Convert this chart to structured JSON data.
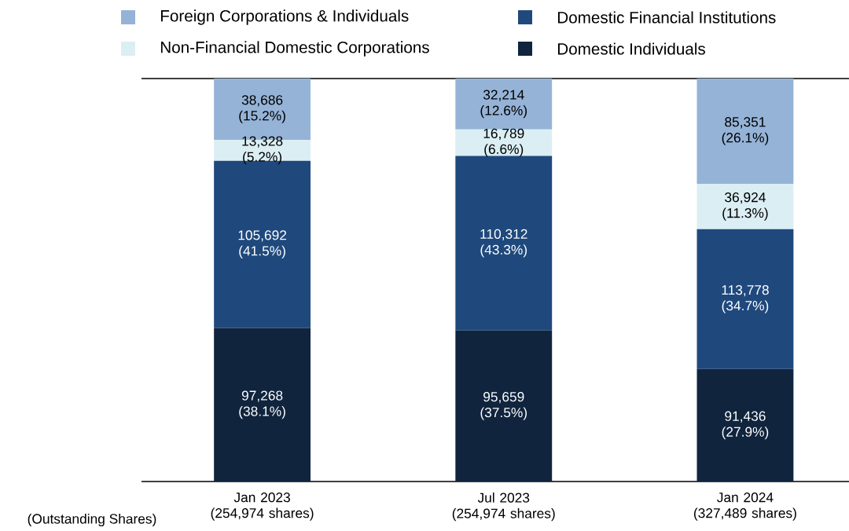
{
  "chart_data": {
    "type": "bar",
    "stacked": true,
    "categories": [
      "Jan 2023 (254,974 shares)",
      "Jul 2023 (254,974 shares)",
      "Jan 2024 (327,489 shares)"
    ],
    "series": [
      {
        "name": "Domestic Individuals",
        "color": "#10243e",
        "values": [
          38.1,
          37.5,
          27.9
        ],
        "value_labels": [
          "97,268 (38.1%)",
          "95,659 (37.5%)",
          "91,436 (27.9%)"
        ]
      },
      {
        "name": "Domestic Financial Institutions",
        "color": "#1f497d",
        "values": [
          41.5,
          43.3,
          34.7
        ],
        "value_labels": [
          "105,692 (41.5%)",
          "110,312 (43.3%)",
          "113,778 (34.7%)"
        ]
      },
      {
        "name": "Non-Financial Domestic Corporations",
        "color": "#dbeef3",
        "values": [
          5.2,
          6.6,
          11.3
        ],
        "value_labels": [
          "13,328 (5.2%)",
          "16,789 (6.6%)",
          "36,924 (11.3%)"
        ]
      },
      {
        "name": "Foreign Corporations & Individuals",
        "color": "#95b3d7",
        "values": [
          15.2,
          12.6,
          26.1
        ],
        "value_labels": [
          "38,686 (15.2%)",
          "32,214 (12.6%)",
          "85,351 (26.1%)"
        ]
      }
    ],
    "annotations": [
      "(Outstanding Shares)"
    ],
    "legend": "top"
  }
}
